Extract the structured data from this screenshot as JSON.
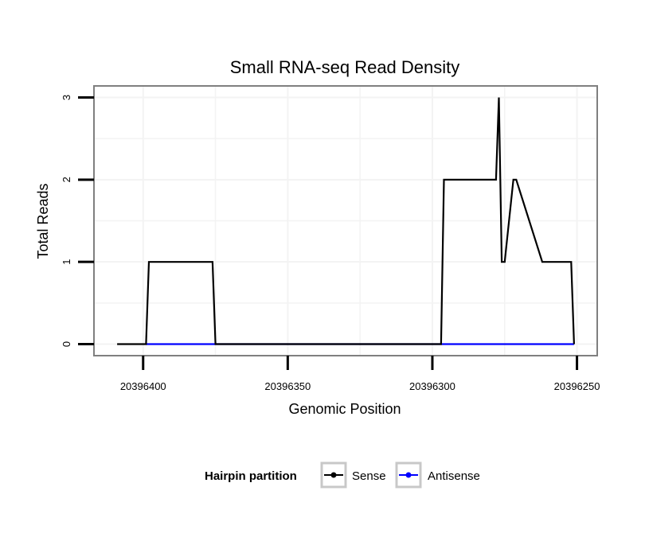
{
  "chart_data": {
    "type": "line",
    "title": "Small RNA-seq Read Density",
    "xlabel": "Genomic Position",
    "ylabel": "Total Reads",
    "x_reversed": true,
    "xlim": [
      20396417,
      20396243
    ],
    "ylim": [
      -0.14,
      3.14
    ],
    "x_ticks": [
      20396400,
      20396350,
      20396300,
      20396250
    ],
    "x_tick_labels": [
      "20396400",
      "20396350",
      "20396300",
      "20396250"
    ],
    "y_ticks": [
      0,
      1,
      2,
      3
    ],
    "y_tick_labels": [
      "0",
      "1",
      "2",
      "3"
    ],
    "grid": true,
    "legend": {
      "title": "Hairpin partition",
      "position": "bottom",
      "entries": [
        {
          "name": "Sense",
          "color": "#000000"
        },
        {
          "name": "Antisense",
          "color": "#0000ff"
        }
      ]
    },
    "series": [
      {
        "name": "Sense",
        "color": "#000000",
        "x": [
          20396409,
          20396399,
          20396398,
          20396376,
          20396375,
          20396297,
          20396296,
          20396278,
          20396277,
          20396276,
          20396275,
          20396272,
          20396271,
          20396262,
          20396261,
          20396252,
          20396251
        ],
        "y": [
          0,
          0,
          1,
          1,
          0,
          0,
          2,
          2,
          3,
          1,
          1,
          2,
          2,
          1,
          1,
          1,
          0
        ]
      },
      {
        "name": "Antisense",
        "color": "#0000ff",
        "x": [
          20396399,
          20396376,
          20396297,
          20396251
        ],
        "y": [
          0,
          0,
          0,
          0
        ]
      }
    ]
  }
}
